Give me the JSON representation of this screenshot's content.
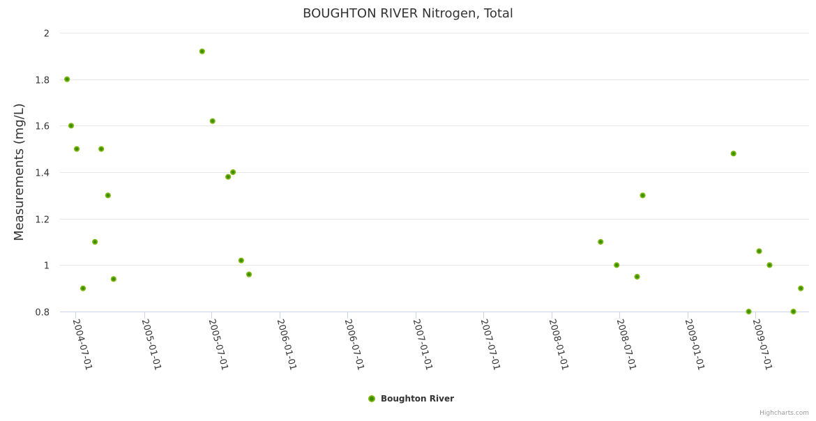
{
  "chart_data": {
    "type": "scatter",
    "title": "BOUGHTON RIVER Nitrogen, Total",
    "xlabel": "",
    "ylabel": "Measurements (mg/L)",
    "ylim": [
      0.8,
      2.0
    ],
    "yticks": [
      0.8,
      1,
      1.2,
      1.4,
      1.6,
      1.8,
      2
    ],
    "ytick_labels": [
      "0.8",
      "1",
      "1.2",
      "1.4",
      "1.6",
      "1.8",
      "2"
    ],
    "xlim": [
      "2004-05-20",
      "2009-11-23"
    ],
    "xticks": [
      "2004-07-01",
      "2005-01-01",
      "2005-07-01",
      "2006-01-01",
      "2006-07-01",
      "2007-01-01",
      "2007-07-01",
      "2008-01-01",
      "2008-07-01",
      "2009-01-01",
      "2009-07-01"
    ],
    "grid": true,
    "legend_position": "bottom-center",
    "series": [
      {
        "name": "Boughton River",
        "color": "#7cb50f",
        "points": [
          {
            "x": "2004-06-08",
            "y": 1.8
          },
          {
            "x": "2004-06-19",
            "y": 1.6
          },
          {
            "x": "2004-07-04",
            "y": 1.5
          },
          {
            "x": "2004-07-21",
            "y": 0.9
          },
          {
            "x": "2004-08-22",
            "y": 1.1
          },
          {
            "x": "2004-09-08",
            "y": 1.5
          },
          {
            "x": "2004-09-26",
            "y": 1.3
          },
          {
            "x": "2004-10-11",
            "y": 0.94
          },
          {
            "x": "2005-06-06",
            "y": 1.92
          },
          {
            "x": "2005-07-04",
            "y": 1.62
          },
          {
            "x": "2005-08-15",
            "y": 1.38
          },
          {
            "x": "2005-08-28",
            "y": 1.4
          },
          {
            "x": "2005-09-19",
            "y": 1.02
          },
          {
            "x": "2005-10-10",
            "y": 0.96
          },
          {
            "x": "2008-05-12",
            "y": 1.1
          },
          {
            "x": "2008-06-24",
            "y": 1.0
          },
          {
            "x": "2008-08-18",
            "y": 0.95
          },
          {
            "x": "2008-09-02",
            "y": 1.3
          },
          {
            "x": "2009-05-04",
            "y": 1.48
          },
          {
            "x": "2009-06-14",
            "y": 0.8
          },
          {
            "x": "2009-07-12",
            "y": 1.06
          },
          {
            "x": "2009-08-09",
            "y": 1.0
          },
          {
            "x": "2009-10-12",
            "y": 0.8
          },
          {
            "x": "2009-11-01",
            "y": 0.9
          }
        ]
      }
    ],
    "credits": "Highcharts.com"
  }
}
